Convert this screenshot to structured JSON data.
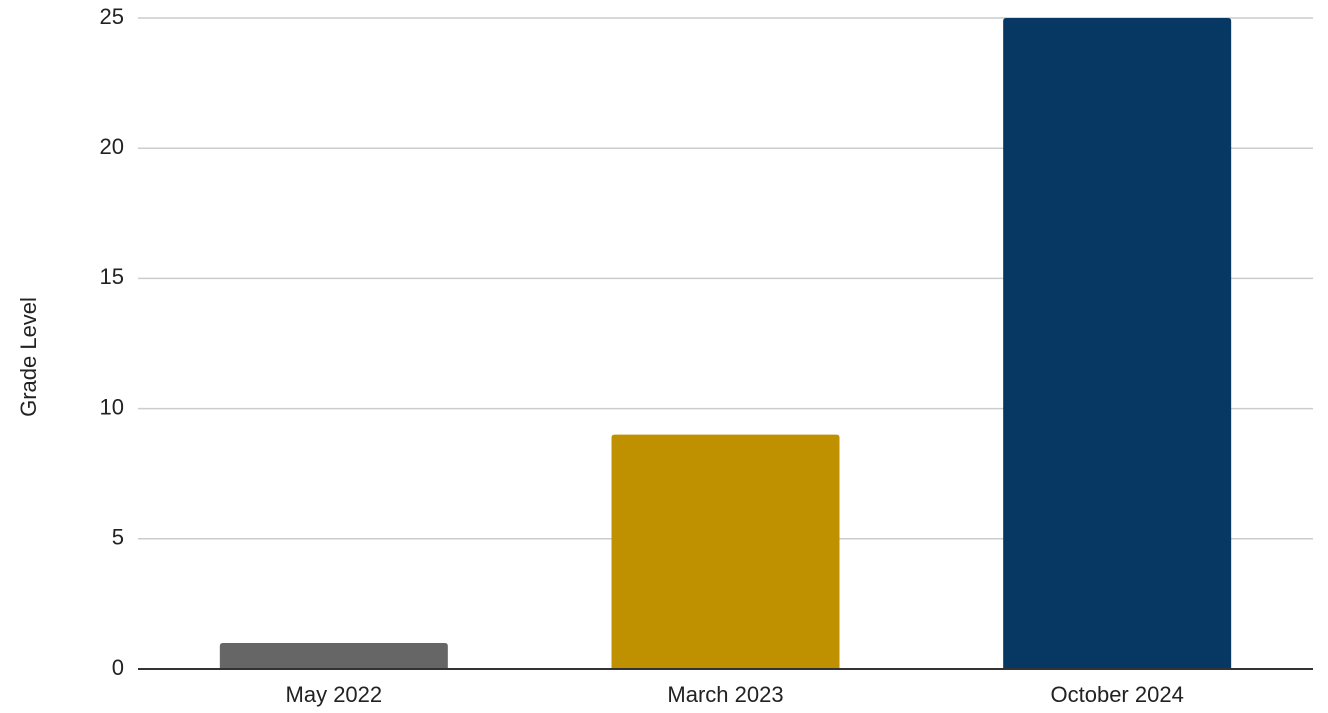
{
  "chart_data": {
    "type": "bar",
    "title": "",
    "xlabel": "",
    "ylabel": "Grade Level",
    "categories": [
      "May 2022",
      "March 2023",
      "October 2024"
    ],
    "values": [
      1,
      9,
      25
    ],
    "bar_colors": [
      "#666666",
      "#bf9000",
      "#073763"
    ],
    "ylim": [
      0,
      25
    ],
    "yticks": [
      0,
      5,
      10,
      15,
      20,
      25
    ],
    "grid": true,
    "legend": "none"
  }
}
